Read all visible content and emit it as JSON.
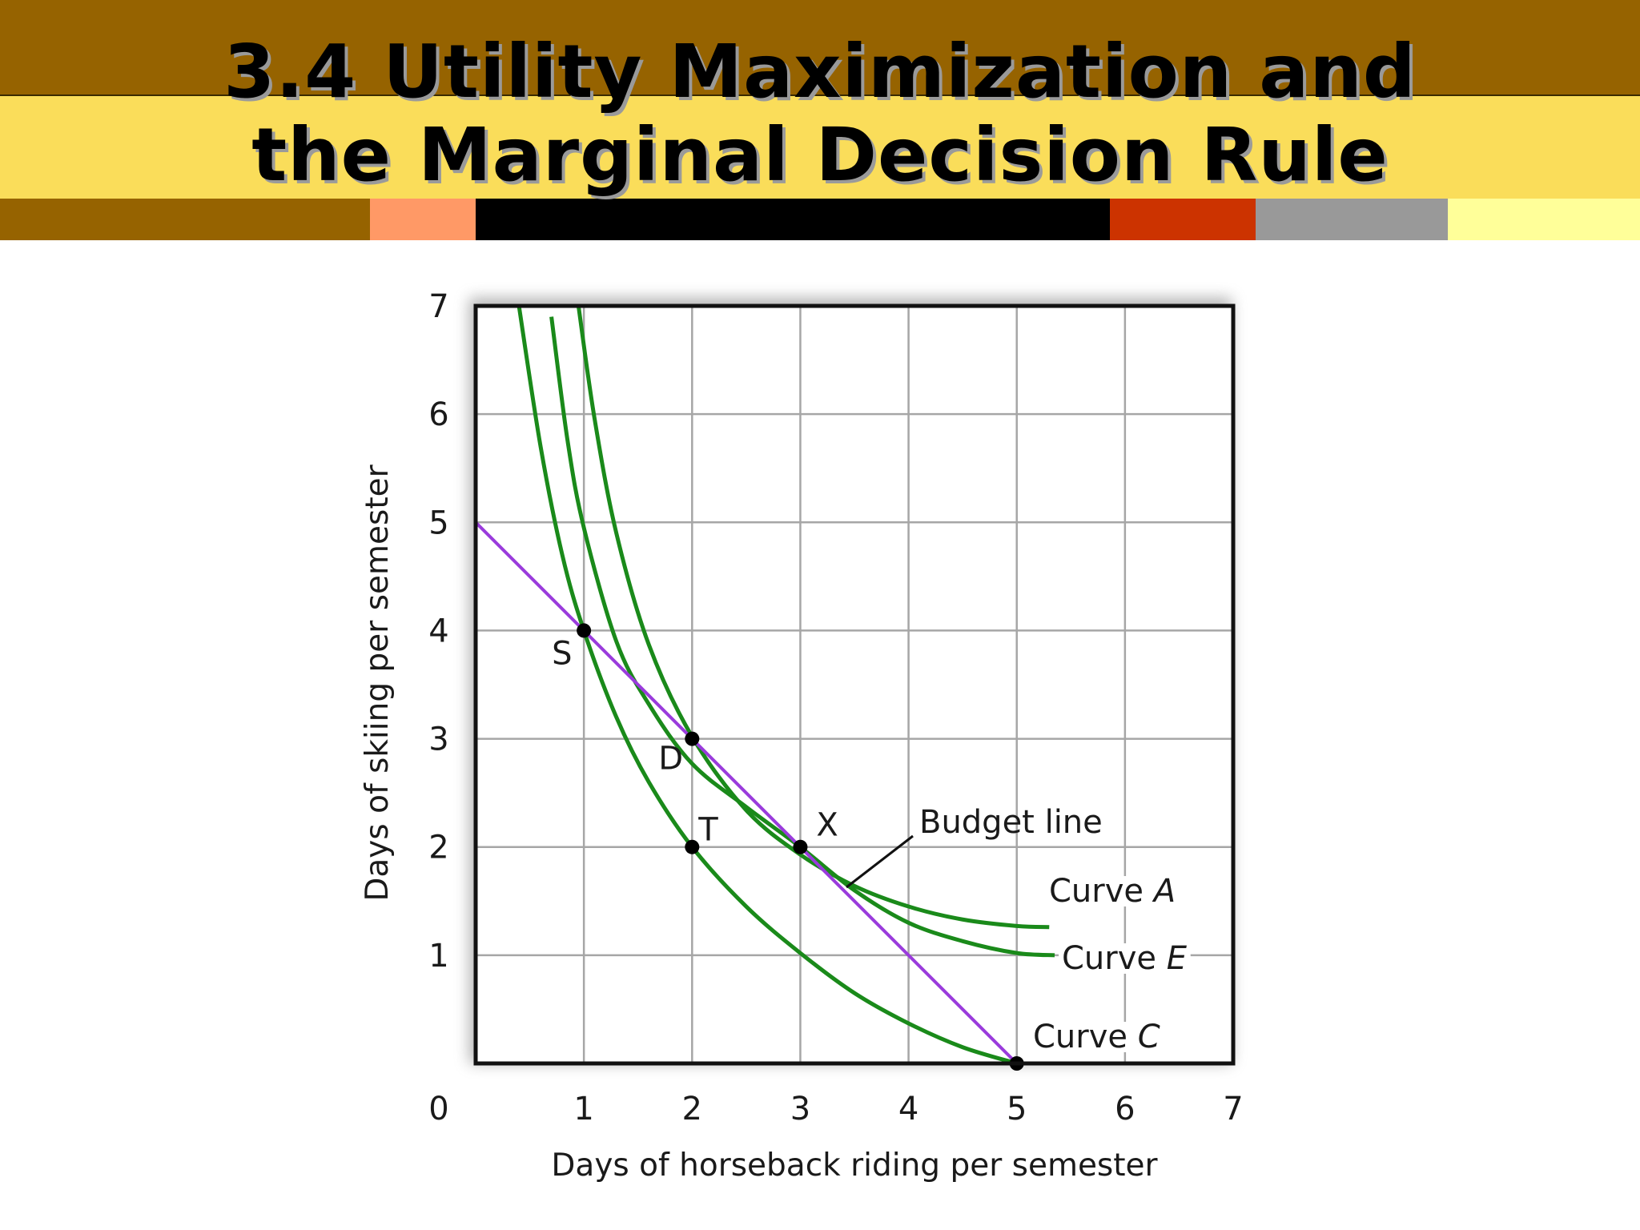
{
  "slide": {
    "title_line1": "3.4 Utility Maximization and",
    "title_line2": "the Marginal Decision Rule",
    "colors": {
      "band_dark": "#966300",
      "band_yellow": "#fadd5a",
      "stripe": [
        "#966300",
        "#ff9966",
        "#000000",
        "#cc3300",
        "#999999",
        "#ffff99"
      ]
    }
  },
  "chart_data": {
    "type": "line",
    "xlabel": "Days of horseback riding per semester",
    "ylabel": "Days of skiing per semester",
    "xlim": [
      0,
      7
    ],
    "ylim": [
      0,
      7
    ],
    "x_ticks": [
      "0",
      "1",
      "2",
      "3",
      "4",
      "5",
      "6",
      "7"
    ],
    "y_ticks": [
      "1",
      "2",
      "3",
      "4",
      "5",
      "6",
      "7"
    ],
    "grid": true,
    "colors": {
      "curves": "#1a8a1a",
      "budget": "#9a3bdc",
      "points": "#000000"
    },
    "budget_line": {
      "label": "Budget line",
      "x": [
        0,
        5
      ],
      "y": [
        5,
        0
      ]
    },
    "curves": [
      {
        "name": "Curve A",
        "label_main": "Curve ",
        "label_italic": "A",
        "x": [
          0.95,
          1.1,
          1.3,
          1.6,
          2.0,
          2.5,
          3.0,
          3.5,
          4.0,
          4.5,
          5.0,
          5.3
        ],
        "y": [
          7.0,
          5.95,
          4.9,
          3.87,
          3.02,
          2.34,
          1.93,
          1.64,
          1.45,
          1.33,
          1.27,
          1.26
        ]
      },
      {
        "name": "Curve E",
        "label_main": "Curve ",
        "label_italic": "E",
        "x": [
          0.7,
          0.85,
          1.0,
          1.3,
          1.6,
          2.0,
          2.5,
          3.0,
          3.5,
          4.0,
          4.5,
          5.0,
          5.35
        ],
        "y": [
          6.9,
          5.75,
          4.95,
          3.9,
          3.32,
          2.77,
          2.37,
          2.0,
          1.6,
          1.3,
          1.13,
          1.02,
          1.0
        ]
      },
      {
        "name": "Curve C",
        "label_main": "Curve ",
        "label_italic": "C",
        "x": [
          0.4,
          0.6,
          0.8,
          1.0,
          1.3,
          1.6,
          2.0,
          2.5,
          3.0,
          3.5,
          4.0,
          4.5,
          5.0
        ],
        "y": [
          7.0,
          5.7,
          4.7,
          4.0,
          3.2,
          2.6,
          2.0,
          1.45,
          1.02,
          0.65,
          0.37,
          0.15,
          0.0
        ]
      }
    ],
    "points": [
      {
        "label": "S",
        "x": 1,
        "y": 4
      },
      {
        "label": "D",
        "x": 2,
        "y": 3
      },
      {
        "label": "T",
        "x": 2,
        "y": 2
      },
      {
        "label": "X",
        "x": 3,
        "y": 2
      },
      {
        "label": "",
        "x": 5,
        "y": 0
      }
    ]
  }
}
